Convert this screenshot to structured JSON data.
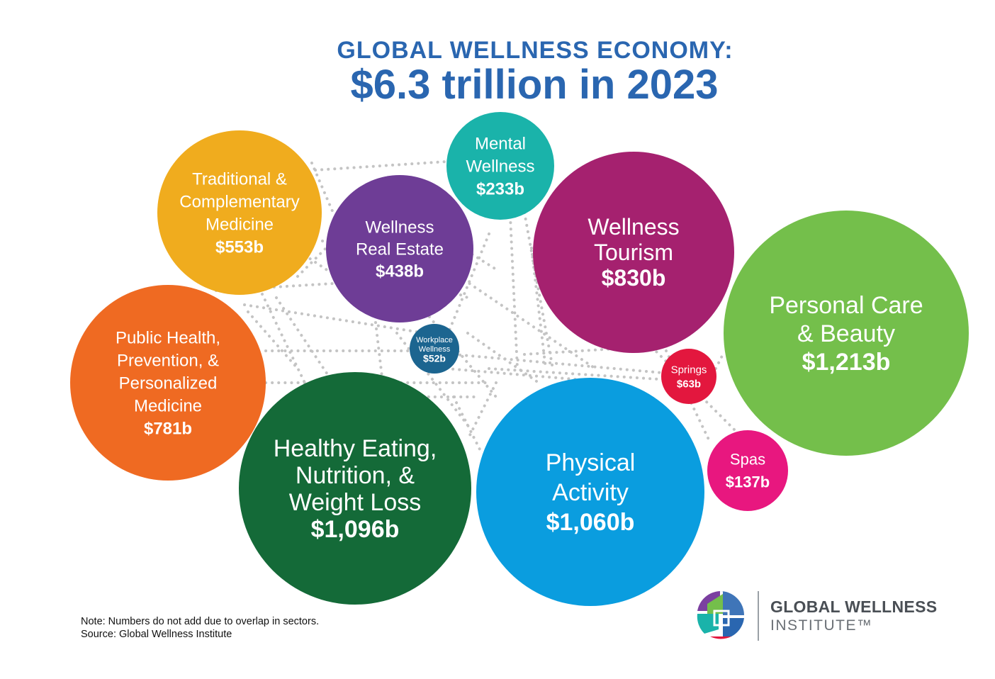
{
  "header": {
    "line1": "GLOBAL WELLNESS ECONOMY:",
    "line2": "$6.3 trillion in 2023"
  },
  "chart_data": {
    "type": "bubble",
    "title": "GLOBAL WELLNESS ECONOMY:",
    "subtitle": "$6.3 trillion in 2023",
    "unit": "billion USD",
    "series": [
      {
        "name": "Personal Care & Beauty",
        "label_lines": [
          "Personal Care",
          "& Beauty"
        ],
        "value_label": "$1,213b",
        "value": 1213,
        "color": "#74bf4b"
      },
      {
        "name": "Healthy Eating, Nutrition, & Weight Loss",
        "label_lines": [
          "Healthy Eating,",
          "Nutrition, &",
          "Weight Loss"
        ],
        "value_label": "$1,096b",
        "value": 1096,
        "color": "#146a38"
      },
      {
        "name": "Physical Activity",
        "label_lines": [
          "Physical",
          "Activity"
        ],
        "value_label": "$1,060b",
        "value": 1060,
        "color": "#0a9ddf"
      },
      {
        "name": "Wellness Tourism",
        "label_lines": [
          "Wellness",
          "Tourism"
        ],
        "value_label": "$830b",
        "value": 830,
        "color": "#a5216f"
      },
      {
        "name": "Public Health, Prevention, & Personalized Medicine",
        "label_lines": [
          "Public Health,",
          "Prevention, &",
          "Personalized",
          "Medicine"
        ],
        "value_label": "$781b",
        "value": 781,
        "color": "#ef6a22"
      },
      {
        "name": "Traditional & Complementary Medicine",
        "label_lines": [
          "Traditional &",
          "Complementary",
          "Medicine"
        ],
        "value_label": "$553b",
        "value": 553,
        "color": "#f0ac1e"
      },
      {
        "name": "Wellness Real Estate",
        "label_lines": [
          "Wellness",
          "Real Estate"
        ],
        "value_label": "$438b",
        "value": 438,
        "color": "#6e3d96"
      },
      {
        "name": "Mental Wellness",
        "label_lines": [
          "Mental",
          "Wellness"
        ],
        "value_label": "$233b",
        "value": 233,
        "color": "#1ab3aa"
      },
      {
        "name": "Spas",
        "label_lines": [
          "Spas"
        ],
        "value_label": "$137b",
        "value": 137,
        "color": "#e8177f"
      },
      {
        "name": "Springs",
        "label_lines": [
          "Springs"
        ],
        "value_label": "$63b",
        "value": 63,
        "color": "#e3173e"
      },
      {
        "name": "Workplace Wellness",
        "label_lines": [
          "Workplace",
          "Wellness"
        ],
        "value_label": "$52b",
        "value": 52,
        "color": "#1c6590"
      }
    ]
  },
  "footer": {
    "note": "Note: Numbers do not add due to overlap in sectors.",
    "source": "Source: Global Wellness Institute"
  },
  "logo": {
    "line1": "GLOBAL WELLNESS",
    "line2": "INSTITUTE™"
  }
}
